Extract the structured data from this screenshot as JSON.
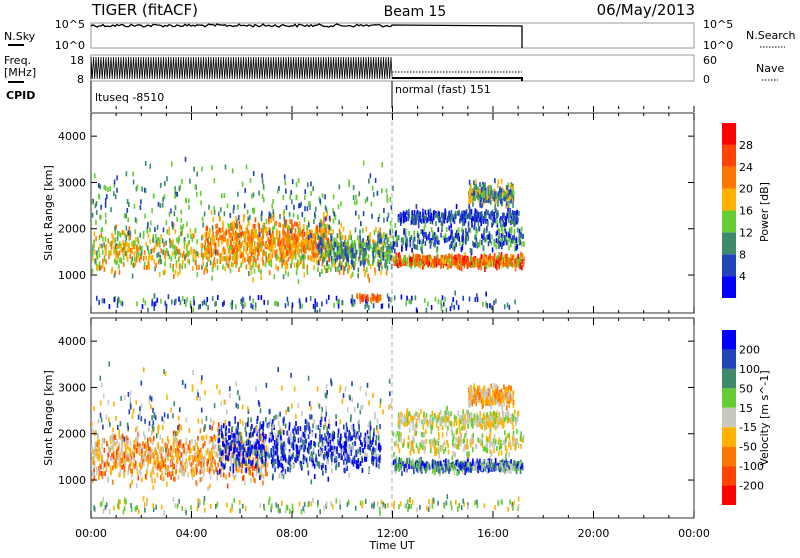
{
  "header": {
    "title": "TIGER (fitACF)",
    "beam": "Beam 15",
    "date": "06/May/2013"
  },
  "left_labels": {
    "nsky": "N.Sky",
    "freq": "Freq.",
    "freq_unit": "[MHz]",
    "cpid": "CPID"
  },
  "right_labels": {
    "nsearch": "N.Search",
    "nave": "Nave"
  },
  "nsky_axis": {
    "top": "10^5",
    "bottom": "10^0"
  },
  "freq_axis": {
    "top": "18",
    "bottom": "8"
  },
  "nave_axis": {
    "top": "60",
    "bottom": "0"
  },
  "cpid": {
    "first": "ltuseq -8510",
    "second": "normal (fast) 151"
  },
  "chart_data": [
    {
      "type": "heatmap",
      "name": "power",
      "ylabel": "Slant Range [km]",
      "xlabel": "Time UT",
      "xlim": [
        0,
        24
      ],
      "ylim": [
        180,
        4500
      ],
      "yticks": [
        "1000",
        "2000",
        "3000",
        "4000"
      ],
      "xticks": [
        "00:00",
        "04:00",
        "08:00",
        "12:00",
        "16:00",
        "20:00",
        "00:00"
      ],
      "colorbar": {
        "label": "Power [dB]",
        "ticks": [
          "4",
          "8",
          "12",
          "16",
          "20",
          "24",
          "28"
        ],
        "colors": [
          "#0000ff",
          "#2244bb",
          "#3f8a6a",
          "#66cc33",
          "#ffb300",
          "#ff7700",
          "#ff4400",
          "#ff0000"
        ]
      }
    },
    {
      "type": "heatmap",
      "name": "velocity",
      "ylabel": "Slant Range [km]",
      "xlabel": "Time UT",
      "xlim": [
        0,
        24
      ],
      "ylim": [
        180,
        4500
      ],
      "yticks": [
        "1000",
        "2000",
        "3000",
        "4000"
      ],
      "xticks": [
        "00:00",
        "04:00",
        "08:00",
        "12:00",
        "16:00",
        "20:00",
        "00:00"
      ],
      "colorbar": {
        "label": "Velocity [m s^-1]",
        "ticks": [
          "200",
          "100",
          "50",
          "15",
          "-15",
          "-50",
          "-100",
          "-200"
        ],
        "colors": [
          "#0000ff",
          "#2244bb",
          "#3f8a6a",
          "#66cc33",
          "#c8c8c0",
          "#ffb300",
          "#ff7700",
          "#ff4400",
          "#ff0000"
        ]
      }
    }
  ]
}
